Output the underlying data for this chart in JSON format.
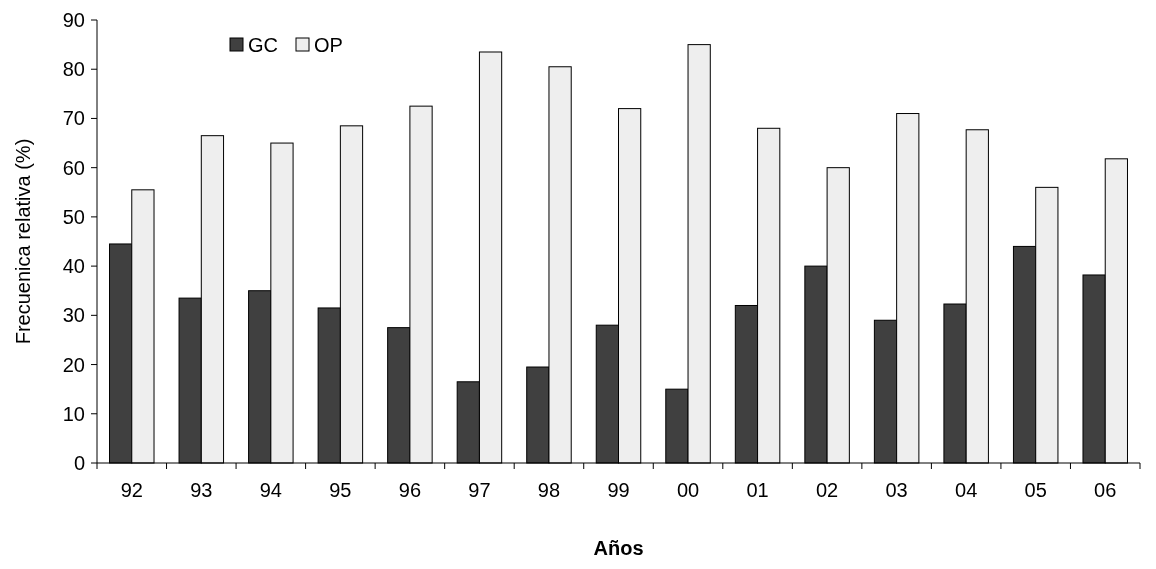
{
  "chart_data": {
    "type": "bar",
    "xlabel": "Años",
    "ylabel": "Frecuenica relativa (%)",
    "categories": [
      "92",
      "93",
      "94",
      "95",
      "96",
      "97",
      "98",
      "99",
      "00",
      "01",
      "02",
      "03",
      "04",
      "05",
      "06"
    ],
    "series": [
      {
        "name": "GC",
        "color": "#404040",
        "values": [
          44.5,
          33.5,
          35,
          31.5,
          27.5,
          16.5,
          19.5,
          28,
          15,
          32,
          40,
          29,
          32.3,
          44,
          38.2
        ]
      },
      {
        "name": "OP",
        "color": "#eeeeee",
        "values": [
          55.5,
          66.5,
          65,
          68.5,
          72.5,
          83.5,
          80.5,
          72,
          85,
          68,
          60,
          71,
          67.7,
          56,
          61.8
        ]
      }
    ],
    "ylim": [
      0,
      90
    ],
    "yticks": [
      0,
      10,
      20,
      30,
      40,
      50,
      60,
      70,
      80,
      90
    ],
    "grid": false,
    "legend": "top left"
  }
}
